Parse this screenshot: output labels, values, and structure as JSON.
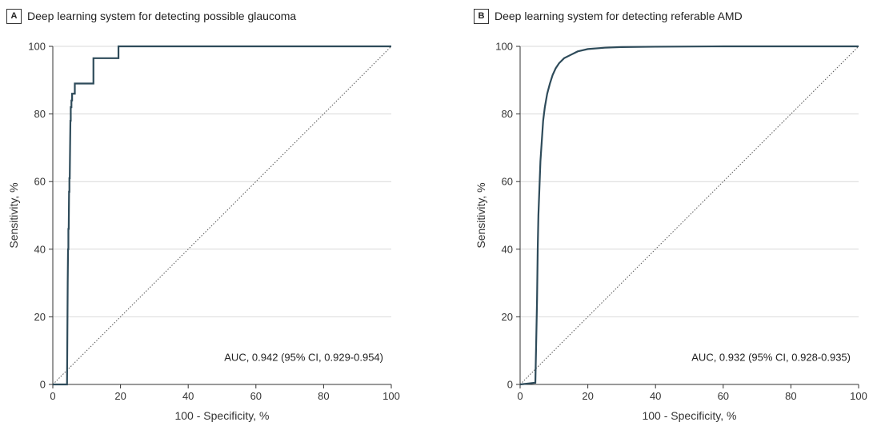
{
  "chart_data": [
    {
      "type": "line",
      "panel_letter": "A",
      "title": "Deep learning system for detecting possible glaucoma",
      "xlabel": "100 - Specificity, %",
      "ylabel": "Sensitivity, %",
      "xlim": [
        0,
        100
      ],
      "ylim": [
        0,
        100
      ],
      "xticks": [
        "0",
        "20",
        "40",
        "60",
        "80",
        "100"
      ],
      "yticks": [
        "0",
        "20",
        "40",
        "60",
        "80",
        "100"
      ],
      "grid": true,
      "annotation": "AUC, 0.942 (95% CI, 0.929-0.954)",
      "colors": {
        "roc": "#2e4b5a",
        "reference": "#555555",
        "grid": "#d9d9d9"
      },
      "series": [
        {
          "x": [
            0,
            4.2,
            4.3,
            4.4,
            4.5,
            4.6,
            4.6,
            4.7,
            4.8,
            4.9,
            4.9,
            5.0,
            5.1,
            5.2,
            5.3,
            5.3,
            5.4,
            5.5,
            5.5,
            5.6,
            5.7,
            5.7,
            5.8,
            6.4,
            6.5,
            6.5,
            12.0,
            12.0,
            19.4,
            19.4,
            100
          ],
          "y": [
            0,
            0,
            15,
            30,
            40,
            40,
            46,
            46,
            57,
            57,
            61,
            61,
            70,
            78,
            78,
            82,
            82,
            82,
            84,
            84,
            84,
            86,
            86,
            86,
            86,
            89,
            89,
            96.5,
            96.5,
            100,
            100
          ]
        },
        {
          "x": [
            0,
            100
          ],
          "y": [
            0,
            100
          ]
        }
      ]
    },
    {
      "type": "line",
      "panel_letter": "B",
      "title": "Deep learning system for detecting referable AMD",
      "xlabel": "100 - Specificity, %",
      "ylabel": "Sensitivity, %",
      "xlim": [
        0,
        100
      ],
      "ylim": [
        0,
        100
      ],
      "xticks": [
        "0",
        "20",
        "40",
        "60",
        "80",
        "100"
      ],
      "yticks": [
        "0",
        "20",
        "40",
        "60",
        "80",
        "100"
      ],
      "grid": true,
      "annotation": "AUC, 0.932 (95% CI, 0.928-0.935)",
      "colors": {
        "roc": "#2e4b5a",
        "reference": "#555555",
        "grid": "#d9d9d9"
      },
      "series": [
        {
          "x": [
            0,
            4.5,
            4.7,
            5.0,
            5.2,
            5.4,
            5.7,
            6.0,
            6.4,
            6.8,
            7.3,
            8.0,
            8.8,
            9.6,
            10.5,
            11.5,
            13.0,
            15.0,
            17.0,
            20.0,
            25.0,
            30.0,
            40.0,
            60.0,
            100
          ],
          "y": [
            0,
            0.5,
            10,
            25,
            40,
            50,
            58,
            66,
            72,
            78,
            82,
            86,
            89,
            91.5,
            93.5,
            95,
            96.5,
            97.5,
            98.5,
            99.2,
            99.6,
            99.8,
            99.9,
            100,
            100
          ]
        },
        {
          "x": [
            0,
            100
          ],
          "y": [
            0,
            100
          ]
        }
      ]
    }
  ]
}
